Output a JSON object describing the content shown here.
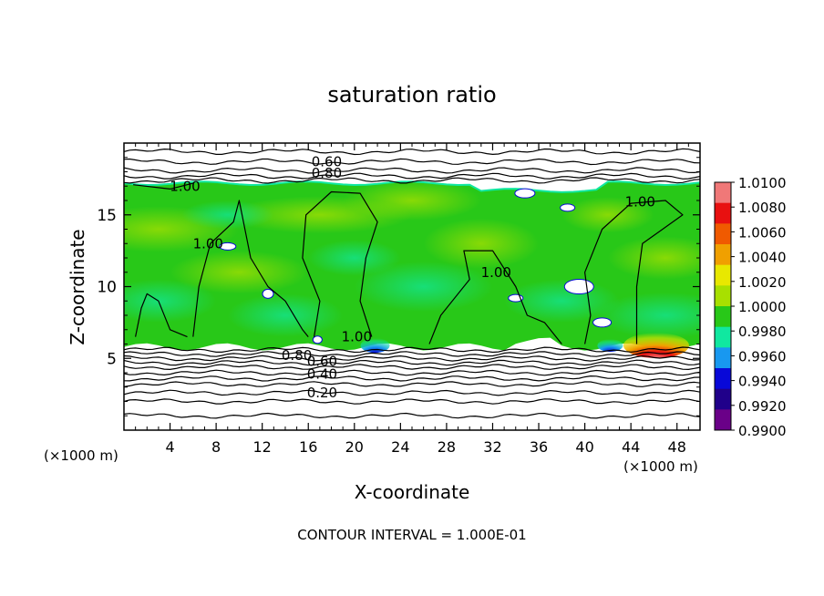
{
  "chart_data": {
    "type": "heatmap",
    "title": "saturation ratio",
    "xlabel": "X-coordinate",
    "ylabel": "Z-coordinate",
    "x_unit": "(×1000 m)",
    "y_unit": "(×1000 m)",
    "xlim": [
      0,
      50
    ],
    "ylim": [
      0,
      20
    ],
    "x_ticks": [
      4,
      8,
      12,
      16,
      20,
      24,
      28,
      32,
      36,
      40,
      44,
      48
    ],
    "y_ticks": [
      5,
      10,
      15
    ],
    "colorbar": {
      "levels": [
        "1.0100",
        "1.0080",
        "1.0060",
        "1.0040",
        "1.0020",
        "1.0000",
        "0.9980",
        "0.9960",
        "0.9940",
        "0.9920",
        "0.9900"
      ],
      "colors": [
        "#f07878",
        "#e81010",
        "#f05a00",
        "#f0a000",
        "#e8e800",
        "#a8e000",
        "#28c818",
        "#10e8a0",
        "#1898f0",
        "#0808d8",
        "#20008a",
        "#6a0088"
      ]
    },
    "contour_labels": [
      {
        "text": "0.60",
        "x": 17.6,
        "y": 18.7
      },
      {
        "text": "0.80",
        "x": 17.6,
        "y": 17.9
      },
      {
        "text": "1.00",
        "x": 5.3,
        "y": 17.0
      },
      {
        "text": "1.00",
        "x": 44.8,
        "y": 15.9
      },
      {
        "text": "1.00",
        "x": 7.3,
        "y": 13.0
      },
      {
        "text": "1.00",
        "x": 32.3,
        "y": 11.0
      },
      {
        "text": "1.00",
        "x": 20.2,
        "y": 6.5
      },
      {
        "text": "0.80",
        "x": 15.0,
        "y": 5.2
      },
      {
        "text": "0.60",
        "x": 17.2,
        "y": 4.8
      },
      {
        "text": "0.40",
        "x": 17.2,
        "y": 3.9
      },
      {
        "text": "0.20",
        "x": 17.2,
        "y": 2.6
      }
    ],
    "grid": false,
    "legend": "right"
  },
  "footer": "CONTOUR INTERVAL = 1.000E-01"
}
